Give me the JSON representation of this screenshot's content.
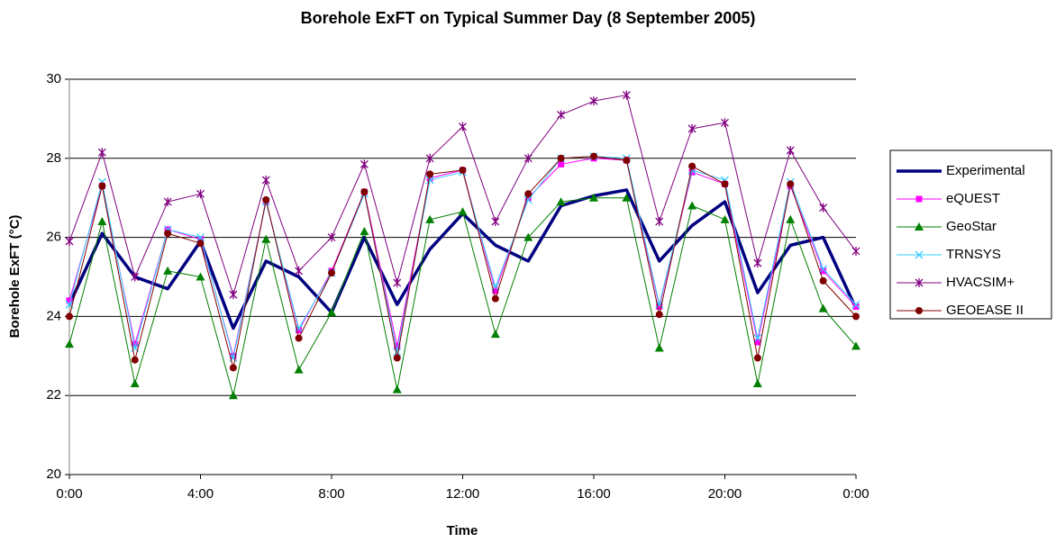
{
  "chart_data": {
    "type": "line",
    "title": "Borehole ExFT on Typical Summer Day (8 September 2005)",
    "x_label": "Time",
    "y_label": "Borehole ExFT (°C)",
    "categories": [
      "0:00",
      null,
      null,
      null,
      "4:00",
      null,
      null,
      null,
      "8:00",
      null,
      null,
      null,
      "12:00",
      null,
      null,
      null,
      "16:00",
      null,
      null,
      null,
      "20:00",
      null,
      null,
      null,
      "0:00"
    ],
    "ylim": [
      20,
      30
    ],
    "yticks": [
      20,
      22,
      24,
      26,
      28,
      30
    ],
    "grid": true,
    "legend": "right",
    "series": [
      {
        "name": "Experimental",
        "color": "#000080",
        "width": 3.5,
        "marker": "none",
        "values": [
          24.3,
          26.1,
          25.0,
          24.7,
          25.9,
          23.7,
          25.4,
          25.0,
          24.1,
          26.0,
          24.3,
          25.7,
          26.6,
          25.8,
          25.4,
          26.8,
          27.05,
          27.2,
          25.4,
          26.3,
          26.9,
          24.6,
          25.8,
          26.0,
          24.2
        ]
      },
      {
        "name": "eQUEST",
        "color": "#ff00ff",
        "width": 1,
        "marker": "square",
        "values": [
          24.4,
          27.3,
          23.3,
          26.2,
          25.95,
          23.0,
          26.9,
          23.65,
          25.15,
          27.15,
          23.25,
          27.5,
          27.7,
          24.65,
          27.0,
          27.85,
          28.0,
          27.95,
          24.25,
          27.65,
          27.35,
          23.35,
          27.3,
          25.15,
          24.25
        ]
      },
      {
        "name": "GeoStar",
        "color": "#008000",
        "width": 1,
        "marker": "triangle",
        "values": [
          23.3,
          26.4,
          22.3,
          25.15,
          25.0,
          22.0,
          25.95,
          22.65,
          24.1,
          26.15,
          22.15,
          26.45,
          26.65,
          23.55,
          26.0,
          26.9,
          27.0,
          27.0,
          23.2,
          26.8,
          26.45,
          22.3,
          26.45,
          24.2,
          23.25
        ]
      },
      {
        "name": "TRNSYS",
        "color": "#33ccff",
        "width": 1,
        "marker": "x",
        "values": [
          24.3,
          27.4,
          23.2,
          26.2,
          26.0,
          22.95,
          26.9,
          23.7,
          25.1,
          27.1,
          23.1,
          27.45,
          27.65,
          24.75,
          26.95,
          28.0,
          28.05,
          28.0,
          24.3,
          27.7,
          27.45,
          23.45,
          27.4,
          25.2,
          24.3
        ]
      },
      {
        "name": "HVACSIM+",
        "color": "#800080",
        "width": 1,
        "marker": "star",
        "values": [
          25.9,
          28.15,
          25.0,
          26.9,
          27.1,
          24.55,
          27.45,
          25.15,
          26.0,
          27.85,
          24.85,
          28.0,
          28.8,
          26.4,
          28.0,
          29.1,
          29.45,
          29.6,
          26.4,
          28.75,
          28.9,
          25.35,
          28.2,
          26.75,
          25.65
        ]
      },
      {
        "name": "GEOEASE II",
        "color": "#800000",
        "width": 1,
        "marker": "circle",
        "values": [
          24.0,
          27.3,
          22.9,
          26.1,
          25.85,
          22.7,
          26.95,
          23.45,
          25.1,
          27.15,
          22.95,
          27.6,
          27.7,
          24.45,
          27.1,
          28.0,
          28.05,
          27.95,
          24.05,
          27.8,
          27.35,
          22.95,
          27.35,
          24.9,
          24.0
        ]
      }
    ]
  }
}
